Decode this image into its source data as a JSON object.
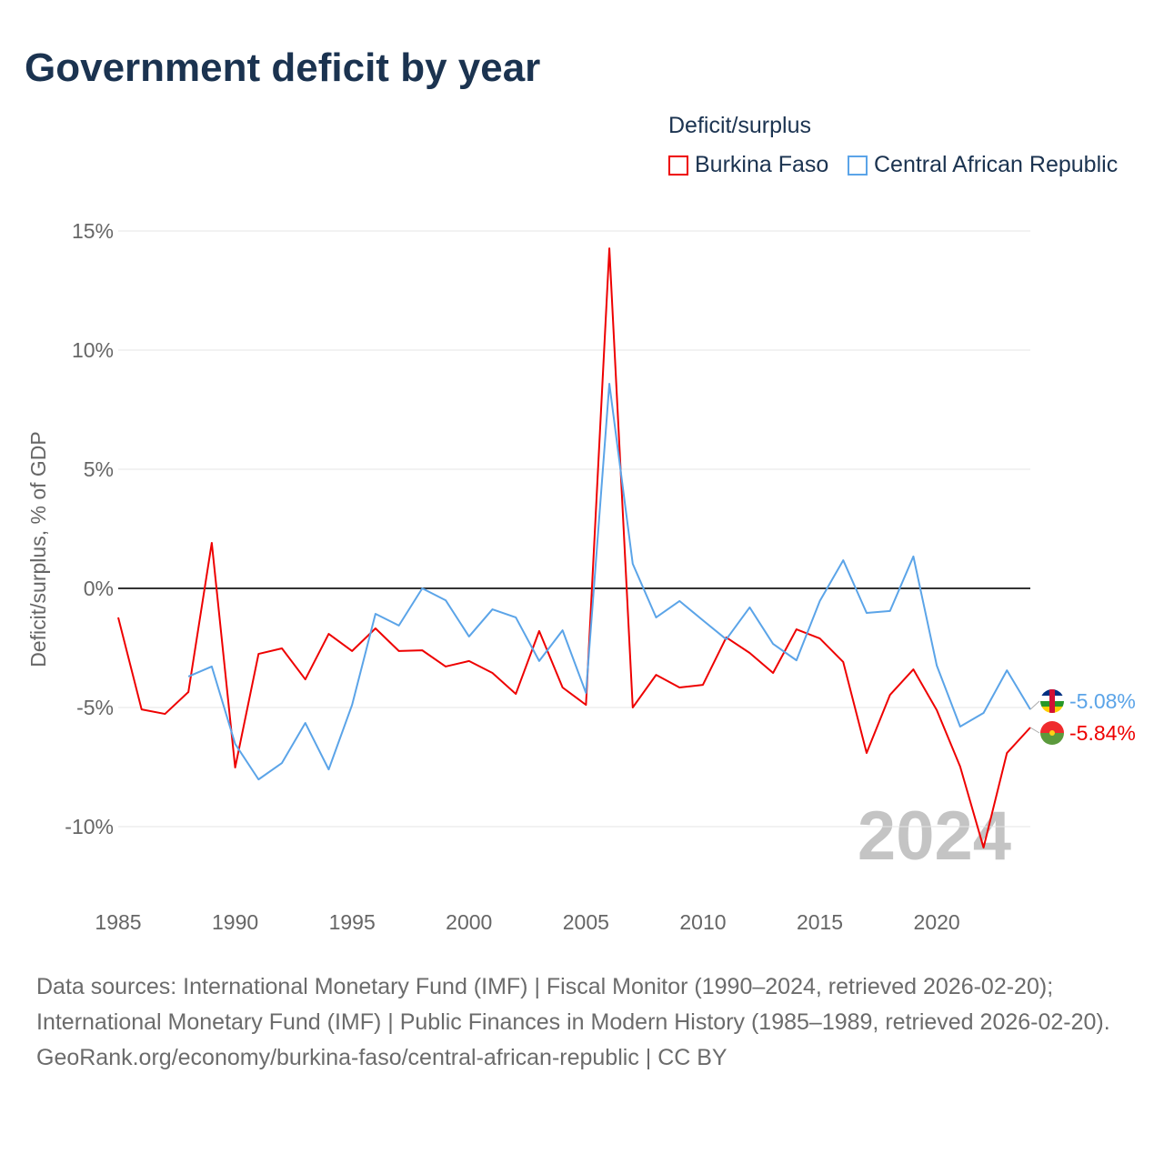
{
  "title": "Government deficit by year",
  "legend": {
    "title": "Deficit/surplus"
  },
  "footer": {
    "sources": "Data sources: International Monetary Fund (IMF) | Fiscal Monitor (1990–2024, retrieved 2026-02-20); International Monetary Fund (IMF) | Public Finances in Modern History (1985–1989, retrieved 2026-02-20).",
    "attribution": "GeoRank.org/economy/burkina-faso/central-african-republic | CC BY"
  },
  "chart_data": {
    "type": "line",
    "title": "Government deficit by year",
    "xlabel": "",
    "ylabel": "Deficit/surplus, % of GDP",
    "xlim": [
      1985,
      2024
    ],
    "ylim": [
      -12.5,
      15
    ],
    "yticks": [
      15,
      10,
      5,
      0,
      -5,
      -10
    ],
    "ytick_labels": [
      "15%",
      "10%",
      "5%",
      "0%",
      "-5%",
      "-10%"
    ],
    "xticks": [
      1985,
      1990,
      1995,
      2000,
      2005,
      2010,
      2015,
      2020
    ],
    "xtick_labels": [
      "1985",
      "1990",
      "1995",
      "2000",
      "2005",
      "2010",
      "2015",
      "2020"
    ],
    "grid": true,
    "legend_position": "top-right",
    "year_watermark": "2024",
    "series": [
      {
        "name": "Burkina Faso",
        "color": "#ee0000",
        "end_label": "-5.84%",
        "start_year": 1985,
        "values": [
          -1.22,
          -5.08,
          -5.27,
          -4.35,
          1.91,
          -7.52,
          -2.75,
          -2.52,
          -3.82,
          -1.91,
          -2.63,
          -1.68,
          -2.63,
          -2.6,
          -3.28,
          -3.05,
          -3.55,
          -4.43,
          -1.79,
          -4.16,
          -4.89,
          14.27,
          -5.0,
          -3.63,
          -4.16,
          -4.05,
          -2.06,
          -2.71,
          -3.55,
          -1.72,
          -2.1,
          -3.09,
          -6.91,
          -4.47,
          -3.4,
          -5.11,
          -7.48,
          -10.88,
          -6.91,
          -5.84
        ]
      },
      {
        "name": "Central African Republic",
        "color": "#5ba4e8",
        "end_label": "-5.08%",
        "start_year": 1988,
        "values": [
          -3.7,
          -3.28,
          -6.53,
          -8.02,
          -7.33,
          -5.65,
          -7.6,
          -4.89,
          -1.07,
          -1.56,
          0.0,
          -0.5,
          -2.02,
          -0.88,
          -1.22,
          -3.05,
          -1.76,
          -4.39,
          8.59,
          1.03,
          -1.22,
          -0.53,
          -1.34,
          -2.14,
          -0.8,
          -2.33,
          -3.02,
          -0.53,
          1.18,
          -1.03,
          -0.95,
          1.34,
          -3.24,
          -5.8,
          -5.23,
          -3.44,
          -5.08
        ]
      }
    ]
  }
}
